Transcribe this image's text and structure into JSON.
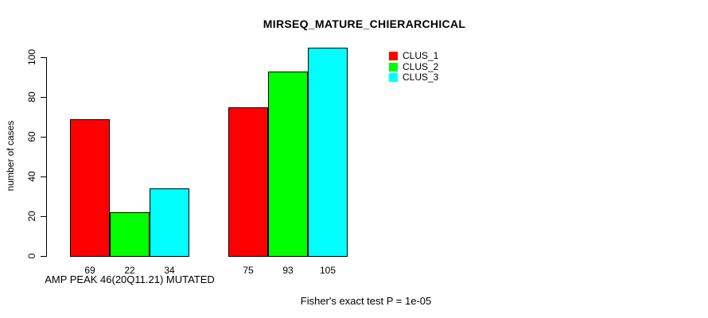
{
  "chart_data": {
    "type": "bar",
    "title": "MIRSEQ_MATURE_CHIERARCHICAL",
    "ylabel": "number of cases",
    "xlabel": "",
    "categories": [
      "AMP PEAK 46(20Q11.21) MUTATED",
      ""
    ],
    "series": [
      {
        "name": "CLUS_1",
        "color": "#ff0000",
        "values": [
          69,
          75
        ]
      },
      {
        "name": "CLUS_2",
        "color": "#00ff00",
        "values": [
          22,
          93
        ]
      },
      {
        "name": "CLUS_3",
        "color": "#00ffff",
        "values": [
          34,
          105
        ]
      }
    ],
    "bar_value_labels": [
      [
        69,
        22,
        34
      ],
      [
        75,
        93,
        105
      ]
    ],
    "yticks": [
      0,
      20,
      40,
      60,
      80,
      100
    ],
    "ylim": [
      0,
      105
    ],
    "grid": false,
    "legend_position": "top-right",
    "bar_border_color": "#000000"
  },
  "annotations": {
    "footer": "Fisher's exact test P = 1e-05"
  },
  "colors": {
    "background": "#ffffff",
    "text": "#000000",
    "axis": "#000000"
  }
}
